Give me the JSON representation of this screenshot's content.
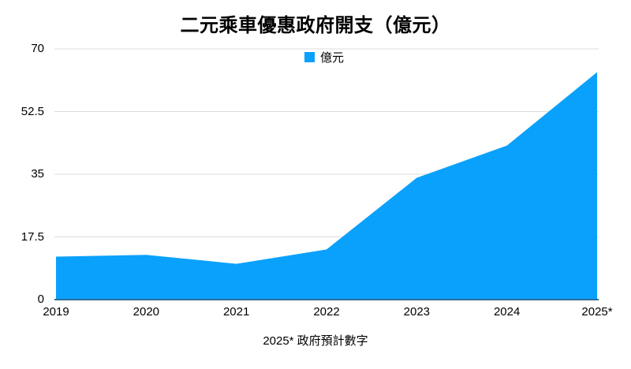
{
  "title": "二元乘車優惠政府開支（億元）",
  "legend": {
    "label": "億元"
  },
  "footnote": "2025* 政府預計數字",
  "colors": {
    "area": "#0AA1FC",
    "gridline": "#DCDCDC",
    "axis_line": "#2F6E99",
    "text": "#000000",
    "background": "#FFFFFF"
  },
  "chart_data": {
    "type": "area",
    "title": "二元乘車優惠政府開支（億元）",
    "categories": [
      "2019",
      "2020",
      "2021",
      "2022",
      "2023",
      "2024",
      "2025*"
    ],
    "series": [
      {
        "name": "億元",
        "values": [
          12,
          12.5,
          10,
          14,
          34,
          43,
          63.5
        ]
      }
    ],
    "xlabel": "",
    "ylabel": "",
    "ylim": [
      0,
      70
    ],
    "yticks": [
      0,
      17.5,
      35,
      52.5,
      70
    ],
    "ytick_labels": [
      "0",
      "17.5",
      "35",
      "52.5",
      "70"
    ],
    "grid": true,
    "legend_position": "top-center",
    "footnote": "2025* 政府預計數字"
  }
}
